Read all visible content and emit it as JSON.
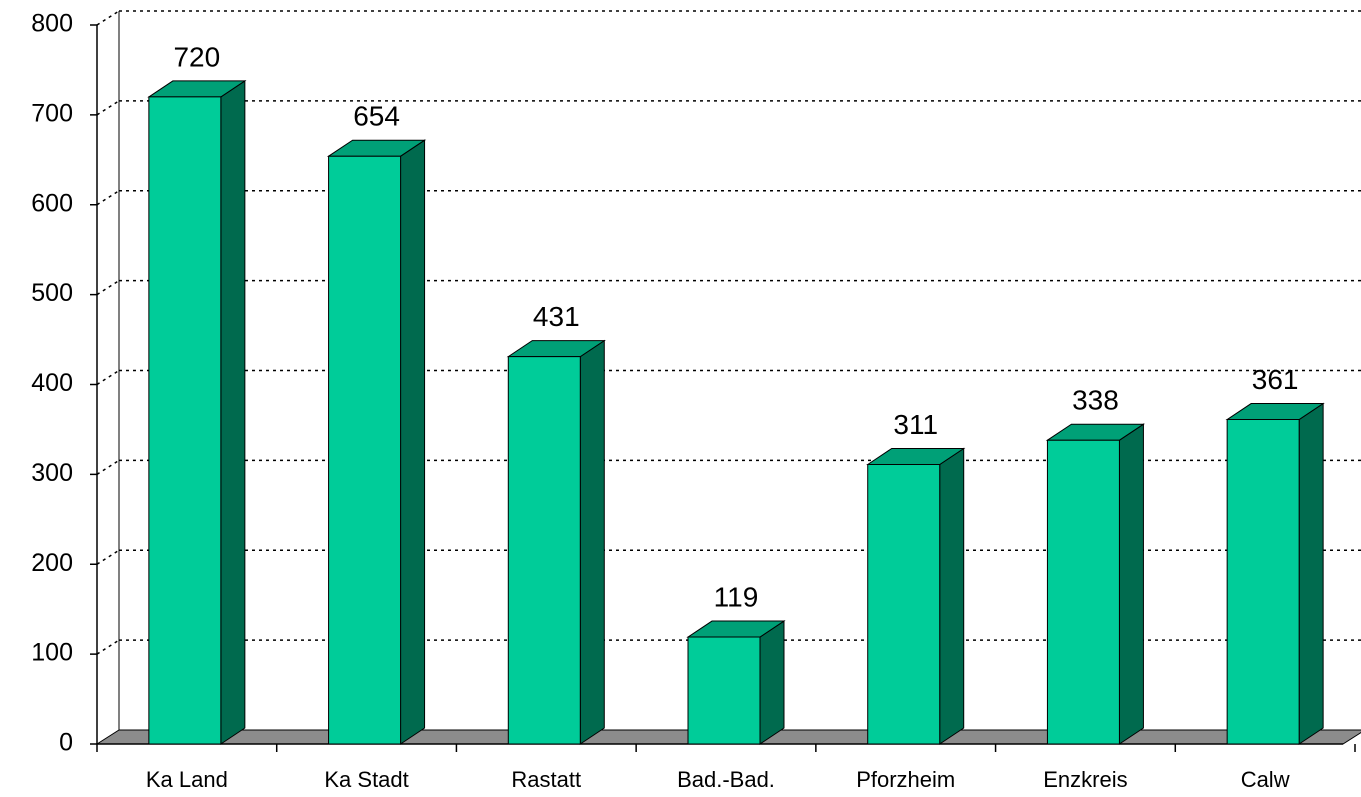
{
  "chart_data": {
    "type": "bar3d",
    "categories": [
      "Ka Land",
      "Ka Stadt",
      "Rastatt",
      "Bad.-Bad.",
      "Pforzheim",
      "Enzkreis",
      "Calw"
    ],
    "values": [
      720,
      654,
      431,
      119,
      311,
      338,
      361
    ],
    "colors": {
      "front": "#00cc99",
      "side": "#006a4e",
      "top": "#00a077"
    },
    "ylim": [
      0,
      800
    ],
    "yticks": [
      0,
      100,
      200,
      300,
      400,
      500,
      600,
      700,
      800
    ],
    "grid": true
  }
}
